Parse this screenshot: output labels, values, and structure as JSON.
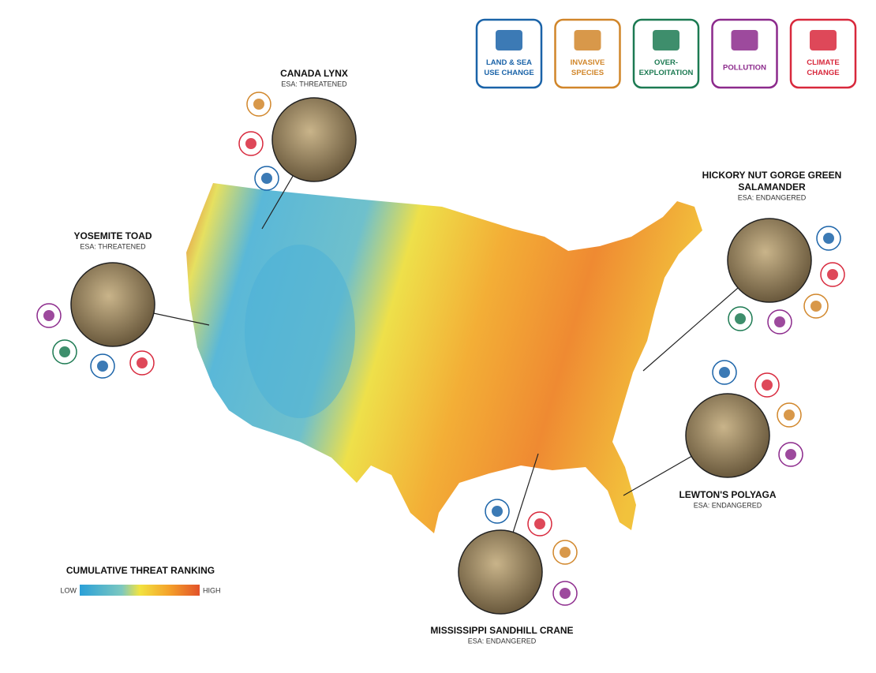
{
  "legend": {
    "items": [
      {
        "lines": [
          "LAND & SEA",
          "USE CHANGE"
        ]
      },
      {
        "lines": [
          "INVASIVE",
          "SPECIES"
        ]
      },
      {
        "lines": [
          "OVER-",
          "EXPLOITATION"
        ]
      },
      {
        "lines": [
          "POLLUTION"
        ]
      },
      {
        "lines": [
          "CLIMATE",
          "CHANGE"
        ]
      }
    ]
  },
  "species": [
    {
      "name_lines": [
        "CANADA LYNX"
      ],
      "status": "ESA: THREATENED"
    },
    {
      "name_lines": [
        "YOSEMITE TOAD"
      ],
      "status": "ESA: THREATENED"
    },
    {
      "name_lines": [
        "HICKORY NUT GORGE GREEN",
        "SALAMANDER"
      ],
      "status": "ESA: ENDANGERED"
    },
    {
      "name_lines": [
        "LEWTON'S POLYAGA"
      ],
      "status": "ESA: ENDANGERED"
    },
    {
      "name_lines": [
        "MISSISSIPPI SANDHILL CRANE"
      ],
      "status": "ESA: ENDANGERED"
    }
  ],
  "threat_ranking": {
    "title": "CUMULATIVE THREAT RANKING",
    "low": "LOW",
    "high": "HIGH"
  }
}
